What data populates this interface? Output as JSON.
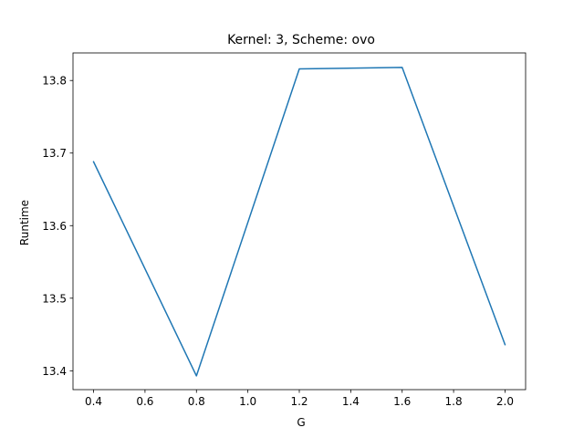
{
  "chart_data": {
    "type": "line",
    "title": "Kernel: 3, Scheme: ovo",
    "xlabel": "G",
    "ylabel": "Runtime",
    "x": [
      0.4,
      0.8,
      1.2,
      1.6,
      2.0
    ],
    "series": [
      {
        "values": [
          13.688,
          13.393,
          13.816,
          13.818,
          13.436
        ],
        "color": "#1f77b4"
      }
    ],
    "xlim": [
      0.32,
      2.08
    ],
    "ylim": [
      13.374,
      13.838
    ],
    "xticks": [
      0.4,
      0.6,
      0.8,
      1.0,
      1.2,
      1.4,
      1.6,
      1.8,
      2.0
    ],
    "xtick_labels": [
      "0.4",
      "0.6",
      "0.8",
      "1.0",
      "1.2",
      "1.4",
      "1.6",
      "1.8",
      "2.0"
    ],
    "yticks": [
      13.4,
      13.5,
      13.6,
      13.7,
      13.8
    ],
    "ytick_labels": [
      "13.4",
      "13.5",
      "13.6",
      "13.7",
      "13.8"
    ],
    "grid": false,
    "legend": "none"
  }
}
